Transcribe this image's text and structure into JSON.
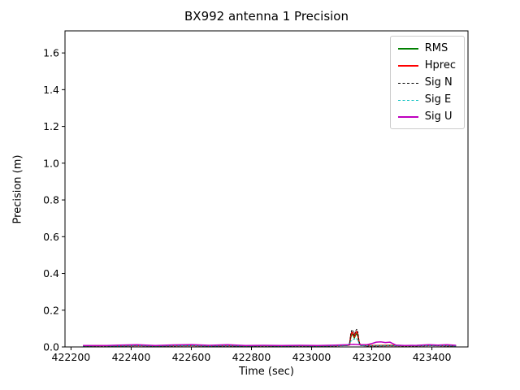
{
  "chart_data": {
    "type": "line",
    "title": "BX992 antenna 1 Precision",
    "xlabel": "Time (sec)",
    "ylabel": "Precision (m)",
    "xlim": [
      422180,
      423520
    ],
    "ylim": [
      0,
      1.72
    ],
    "grid": false,
    "legend_position": "upper right",
    "xticks": [
      422200,
      422400,
      422600,
      422800,
      423000,
      423200,
      423400
    ],
    "xtick_labels": [
      "422200",
      "422400",
      "422600",
      "422800",
      "423000",
      "423200",
      "423400"
    ],
    "yticks": [
      0.0,
      0.2,
      0.4,
      0.6,
      0.8,
      1.0,
      1.2,
      1.4,
      1.6
    ],
    "ytick_labels": [
      "0.0",
      "0.2",
      "0.4",
      "0.6",
      "0.8",
      "1.0",
      "1.2",
      "1.4",
      "1.6"
    ],
    "series": [
      {
        "name": "RMS",
        "color": "#008000",
        "dash": "",
        "width": 1.5,
        "points": [
          [
            422240,
            0.007
          ],
          [
            422300,
            0.008
          ],
          [
            422360,
            0.007
          ],
          [
            422420,
            0.009
          ],
          [
            422480,
            0.007
          ],
          [
            422540,
            0.008
          ],
          [
            422600,
            0.009
          ],
          [
            422660,
            0.007
          ],
          [
            422720,
            0.008
          ],
          [
            422780,
            0.007
          ],
          [
            422840,
            0.008
          ],
          [
            422900,
            0.007
          ],
          [
            422960,
            0.008
          ],
          [
            423020,
            0.007
          ],
          [
            423080,
            0.008
          ],
          [
            423120,
            0.01
          ],
          [
            423126,
            0.013
          ],
          [
            423130,
            0.05
          ],
          [
            423134,
            0.07
          ],
          [
            423138,
            0.065
          ],
          [
            423142,
            0.048
          ],
          [
            423146,
            0.066
          ],
          [
            423150,
            0.072
          ],
          [
            423154,
            0.058
          ],
          [
            423158,
            0.022
          ],
          [
            423162,
            0.011
          ],
          [
            423180,
            0.008
          ],
          [
            423220,
            0.008
          ],
          [
            423260,
            0.009
          ],
          [
            423300,
            0.008
          ],
          [
            423350,
            0.008
          ],
          [
            423400,
            0.009
          ],
          [
            423450,
            0.008
          ],
          [
            423480,
            0.007
          ]
        ]
      },
      {
        "name": "Hprec",
        "color": "#ff0000",
        "dash": "",
        "width": 1.5,
        "points": [
          [
            422240,
            0.006
          ],
          [
            422300,
            0.007
          ],
          [
            422360,
            0.006
          ],
          [
            422420,
            0.008
          ],
          [
            422480,
            0.006
          ],
          [
            422540,
            0.007
          ],
          [
            422600,
            0.008
          ],
          [
            422660,
            0.006
          ],
          [
            422720,
            0.007
          ],
          [
            422780,
            0.006
          ],
          [
            422840,
            0.007
          ],
          [
            422900,
            0.006
          ],
          [
            422960,
            0.007
          ],
          [
            423020,
            0.006
          ],
          [
            423080,
            0.007
          ],
          [
            423120,
            0.009
          ],
          [
            423126,
            0.012
          ],
          [
            423130,
            0.058
          ],
          [
            423134,
            0.08
          ],
          [
            423138,
            0.074
          ],
          [
            423142,
            0.054
          ],
          [
            423146,
            0.076
          ],
          [
            423150,
            0.084
          ],
          [
            423154,
            0.068
          ],
          [
            423158,
            0.024
          ],
          [
            423162,
            0.01
          ],
          [
            423180,
            0.007
          ],
          [
            423220,
            0.007
          ],
          [
            423260,
            0.008
          ],
          [
            423300,
            0.007
          ],
          [
            423350,
            0.007
          ],
          [
            423400,
            0.008
          ],
          [
            423450,
            0.007
          ],
          [
            423480,
            0.006
          ]
        ]
      },
      {
        "name": "Sig N",
        "color": "#000000",
        "dash": "3,1.3",
        "width": 0.9,
        "points": [
          [
            422240,
            0.004
          ],
          [
            422300,
            0.005
          ],
          [
            422360,
            0.004
          ],
          [
            422420,
            0.006
          ],
          [
            422480,
            0.004
          ],
          [
            422540,
            0.005
          ],
          [
            422600,
            0.006
          ],
          [
            422660,
            0.004
          ],
          [
            422720,
            0.005
          ],
          [
            422780,
            0.004
          ],
          [
            422840,
            0.005
          ],
          [
            422900,
            0.004
          ],
          [
            422960,
            0.005
          ],
          [
            423020,
            0.004
          ],
          [
            423080,
            0.005
          ],
          [
            423120,
            0.007
          ],
          [
            423126,
            0.01
          ],
          [
            423130,
            0.07
          ],
          [
            423134,
            0.093
          ],
          [
            423138,
            0.086
          ],
          [
            423142,
            0.062
          ],
          [
            423146,
            0.088
          ],
          [
            423150,
            0.096
          ],
          [
            423154,
            0.08
          ],
          [
            423158,
            0.03
          ],
          [
            423162,
            0.008
          ],
          [
            423180,
            0.005
          ],
          [
            423220,
            0.005
          ],
          [
            423260,
            0.006
          ],
          [
            423300,
            0.005
          ],
          [
            423350,
            0.005
          ],
          [
            423400,
            0.006
          ],
          [
            423450,
            0.005
          ],
          [
            423480,
            0.005
          ]
        ]
      },
      {
        "name": "Sig E",
        "color": "#00bfbf",
        "dash": "3,1.3",
        "width": 0.9,
        "points": [
          [
            422240,
            0.005
          ],
          [
            422300,
            0.006
          ],
          [
            422360,
            0.005
          ],
          [
            422420,
            0.007
          ],
          [
            422480,
            0.005
          ],
          [
            422540,
            0.006
          ],
          [
            422600,
            0.007
          ],
          [
            422660,
            0.005
          ],
          [
            422720,
            0.006
          ],
          [
            422780,
            0.005
          ],
          [
            422840,
            0.006
          ],
          [
            422900,
            0.005
          ],
          [
            422960,
            0.006
          ],
          [
            423020,
            0.005
          ],
          [
            423080,
            0.006
          ],
          [
            423120,
            0.008
          ],
          [
            423130,
            0.03
          ],
          [
            423140,
            0.042
          ],
          [
            423150,
            0.045
          ],
          [
            423158,
            0.02
          ],
          [
            423162,
            0.007
          ],
          [
            423180,
            0.006
          ],
          [
            423220,
            0.006
          ],
          [
            423260,
            0.007
          ],
          [
            423300,
            0.006
          ],
          [
            423350,
            0.006
          ],
          [
            423400,
            0.007
          ],
          [
            423450,
            0.006
          ],
          [
            423480,
            0.005
          ]
        ]
      },
      {
        "name": "Sig U",
        "color": "#bf00bf",
        "dash": "",
        "width": 1.5,
        "points": [
          [
            422240,
            0.008
          ],
          [
            422300,
            0.007
          ],
          [
            422360,
            0.01
          ],
          [
            422420,
            0.012
          ],
          [
            422480,
            0.008
          ],
          [
            422540,
            0.011
          ],
          [
            422600,
            0.013
          ],
          [
            422660,
            0.009
          ],
          [
            422720,
            0.012
          ],
          [
            422780,
            0.008
          ],
          [
            422840,
            0.009
          ],
          [
            422900,
            0.008
          ],
          [
            422960,
            0.009
          ],
          [
            423020,
            0.008
          ],
          [
            423080,
            0.01
          ],
          [
            423120,
            0.012
          ],
          [
            423140,
            0.014
          ],
          [
            423160,
            0.012
          ],
          [
            423185,
            0.013
          ],
          [
            423200,
            0.018
          ],
          [
            423215,
            0.026
          ],
          [
            423230,
            0.028
          ],
          [
            423245,
            0.024
          ],
          [
            423260,
            0.026
          ],
          [
            423270,
            0.018
          ],
          [
            423280,
            0.01
          ],
          [
            423310,
            0.008
          ],
          [
            423350,
            0.009
          ],
          [
            423390,
            0.012
          ],
          [
            423420,
            0.01
          ],
          [
            423450,
            0.012
          ],
          [
            423480,
            0.009
          ]
        ]
      }
    ]
  }
}
